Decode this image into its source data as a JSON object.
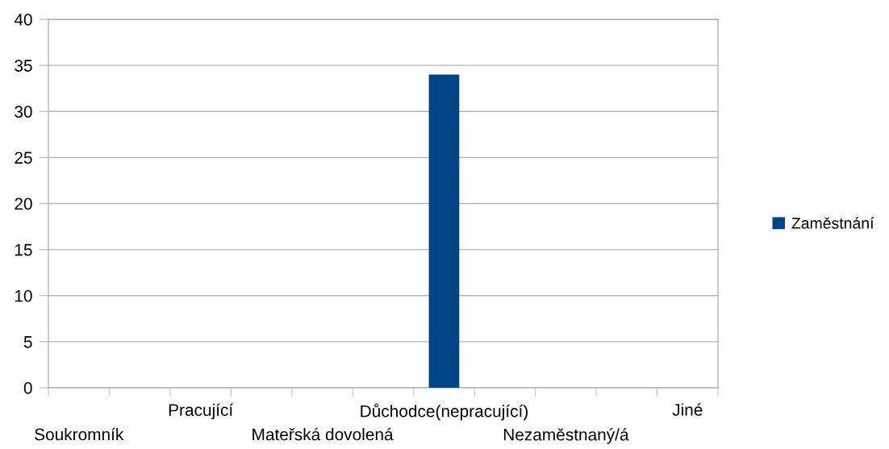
{
  "chart_data": {
    "type": "bar",
    "categories": [
      "Soukromník",
      null,
      "Pracující",
      null,
      "Mateřská dovolená",
      null,
      "Důchodce(nepracující)",
      null,
      "Nezaměstnaný/á",
      null,
      "Jiné"
    ],
    "series": [
      {
        "name": "Zaměstnání",
        "color": "#004586",
        "values": [
          0,
          0,
          0,
          0,
          0,
          0,
          34,
          0,
          0,
          0,
          0
        ]
      }
    ],
    "ylim": [
      0,
      40
    ],
    "yticks": [
      0,
      5,
      10,
      15,
      20,
      25,
      30,
      35,
      40
    ],
    "grid": "y",
    "legend": "right"
  }
}
